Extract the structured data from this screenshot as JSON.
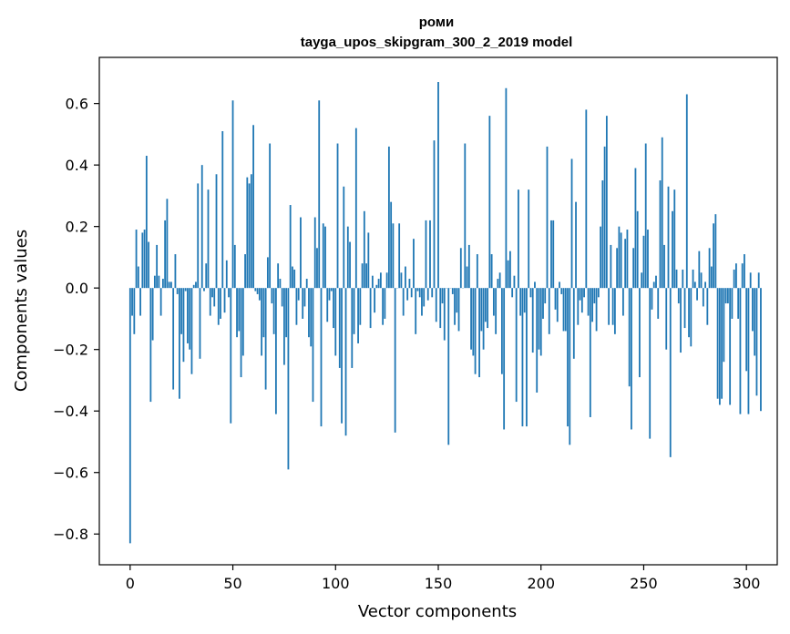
{
  "chart_data": {
    "type": "bar",
    "title": "роми",
    "subtitle": "tayga_upos_skipgram_300_2_2019 model",
    "xlabel": "Vector components",
    "ylabel": "Components values",
    "xlim": [
      -15,
      315
    ],
    "ylim": [
      -0.9,
      0.75
    ],
    "xticks": [
      0,
      50,
      100,
      150,
      200,
      250,
      300
    ],
    "yticks": [
      -0.8,
      -0.6,
      -0.4,
      -0.2,
      0.0,
      0.2,
      0.4,
      0.6
    ],
    "ytick_labels": [
      "−0.8",
      "−0.6",
      "−0.4",
      "−0.2",
      "0.0",
      "0.2",
      "0.4",
      "0.6"
    ],
    "bar_color": "#1f77b4",
    "grid": false,
    "legend": "none",
    "values": [
      -0.83,
      -0.09,
      -0.15,
      0.19,
      0.07,
      -0.09,
      0.18,
      0.19,
      0.43,
      0.15,
      -0.37,
      -0.17,
      0.04,
      0.14,
      0.04,
      -0.09,
      0.03,
      0.22,
      0.29,
      0.02,
      0.02,
      -0.33,
      0.11,
      -0.02,
      -0.36,
      -0.15,
      -0.24,
      -0.01,
      -0.18,
      -0.2,
      -0.28,
      0.01,
      0.02,
      0.34,
      -0.23,
      0.4,
      -0.01,
      0.08,
      0.32,
      -0.09,
      -0.03,
      -0.06,
      0.37,
      -0.12,
      -0.1,
      0.51,
      -0.08,
      0.09,
      -0.03,
      -0.44,
      0.61,
      0.14,
      -0.16,
      -0.14,
      -0.29,
      -0.22,
      0.11,
      0.36,
      0.34,
      0.37,
      0.53,
      -0.01,
      -0.02,
      -0.04,
      -0.22,
      -0.16,
      -0.33,
      0.1,
      0.47,
      -0.05,
      -0.15,
      -0.41,
      0.08,
      0.03,
      -0.06,
      -0.25,
      -0.16,
      -0.59,
      0.27,
      0.07,
      0.06,
      -0.12,
      -0.04,
      0.23,
      -0.1,
      -0.06,
      0.03,
      -0.16,
      -0.19,
      -0.37,
      0.23,
      0.13,
      0.61,
      -0.45,
      0.21,
      0.2,
      -0.11,
      -0.04,
      -0.01,
      -0.13,
      -0.22,
      0.47,
      -0.26,
      -0.44,
      0.33,
      -0.48,
      0.2,
      0.15,
      -0.26,
      -0.15,
      0.52,
      -0.18,
      -0.12,
      0.08,
      0.25,
      0.08,
      0.18,
      -0.13,
      0.04,
      -0.08,
      0.01,
      0.03,
      0.05,
      -0.12,
      -0.1,
      0.05,
      0.46,
      0.28,
      0.21,
      -0.47,
      0.0,
      0.21,
      0.05,
      -0.09,
      0.07,
      -0.04,
      0.03,
      -0.03,
      0.16,
      -0.15,
      -0.01,
      -0.03,
      -0.09,
      -0.06,
      0.22,
      -0.04,
      0.22,
      -0.03,
      0.48,
      -0.11,
      0.67,
      -0.13,
      -0.05,
      -0.17,
      0.0,
      -0.51,
      0.0,
      -0.02,
      -0.12,
      -0.08,
      -0.14,
      0.13,
      0.0,
      0.47,
      0.07,
      0.14,
      -0.2,
      -0.22,
      -0.28,
      0.11,
      -0.29,
      -0.14,
      -0.2,
      -0.11,
      -0.13,
      0.56,
      0.11,
      -0.09,
      -0.15,
      0.03,
      0.05,
      -0.28,
      -0.46,
      0.65,
      0.09,
      0.12,
      -0.03,
      0.04,
      -0.37,
      0.32,
      -0.09,
      -0.45,
      -0.08,
      -0.45,
      0.32,
      -0.03,
      -0.21,
      0.02,
      -0.34,
      -0.2,
      -0.22,
      -0.1,
      -0.05,
      0.46,
      -0.15,
      0.22,
      0.22,
      -0.07,
      -0.11,
      0.02,
      -0.02,
      -0.14,
      -0.14,
      -0.45,
      -0.51,
      0.42,
      -0.23,
      0.28,
      -0.12,
      -0.04,
      -0.08,
      -0.03,
      0.58,
      -0.09,
      -0.42,
      -0.11,
      -0.05,
      -0.14,
      -0.03,
      0.2,
      0.35,
      0.46,
      0.56,
      -0.12,
      0.14,
      -0.12,
      -0.15,
      0.13,
      0.2,
      0.18,
      -0.09,
      0.16,
      0.19,
      -0.32,
      -0.46,
      0.13,
      0.39,
      0.25,
      -0.29,
      0.05,
      0.17,
      0.47,
      0.19,
      -0.49,
      -0.07,
      0.02,
      0.04,
      -0.1,
      0.35,
      0.49,
      0.14,
      -0.2,
      0.33,
      -0.55,
      0.25,
      0.32,
      0.06,
      -0.05,
      -0.21,
      0.06,
      -0.13,
      0.63,
      -0.16,
      -0.19,
      0.06,
      0.02,
      -0.04,
      0.12,
      0.05,
      -0.06,
      0.02,
      -0.12,
      0.13,
      0.07,
      0.21,
      0.24,
      -0.36,
      -0.38,
      -0.36,
      -0.24,
      -0.05,
      -0.05,
      -0.38,
      -0.1,
      0.06,
      0.08,
      -0.1,
      -0.41,
      0.08,
      0.11,
      -0.27,
      -0.41,
      0.05,
      -0.14,
      -0.22,
      -0.35,
      0.05,
      -0.4
    ]
  }
}
